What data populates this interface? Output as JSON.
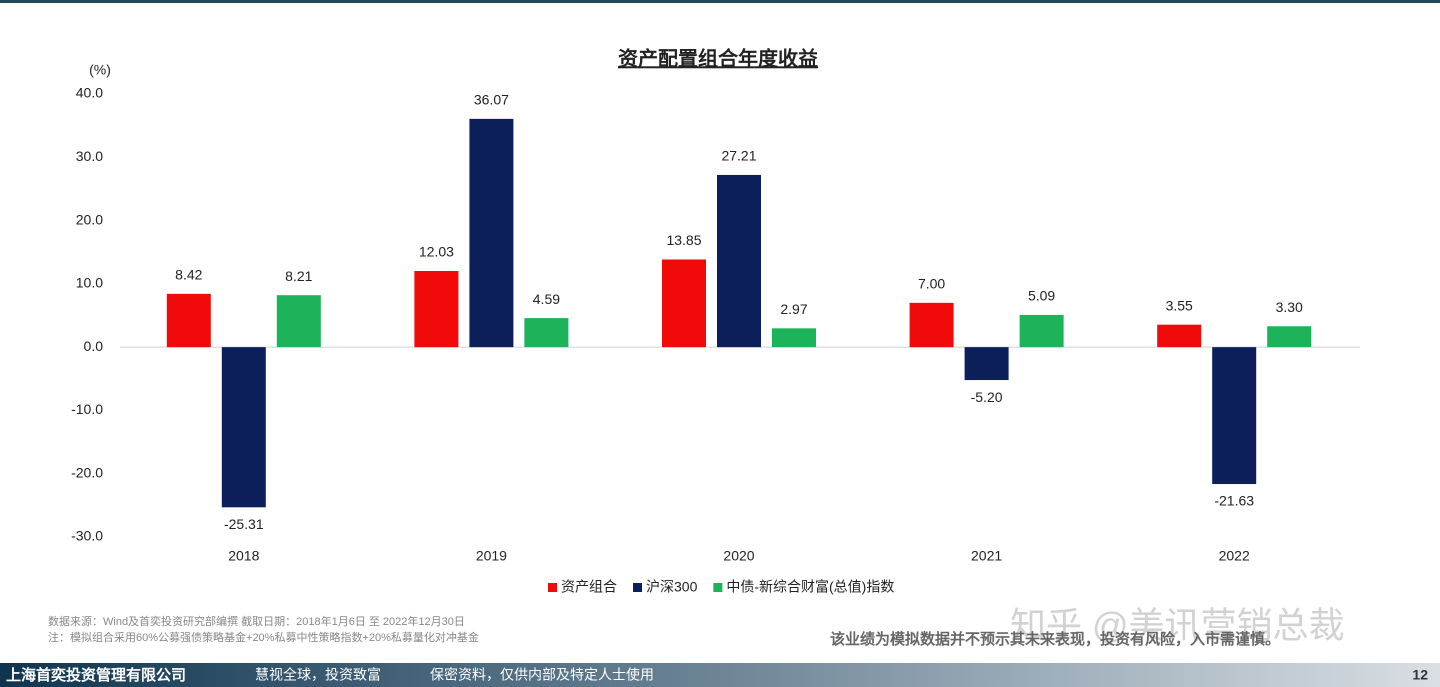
{
  "chart_data": {
    "type": "bar",
    "title": "资产配置组合年度收益",
    "y_label": "(%)",
    "categories": [
      "2018",
      "2019",
      "2020",
      "2021",
      "2022"
    ],
    "series": [
      {
        "name": "资产组合",
        "color": "#f00a0a",
        "values": [
          8.42,
          12.03,
          13.85,
          7.0,
          3.55
        ],
        "value_labels": [
          "8.42",
          "12.03",
          "13.85",
          "7.00",
          "3.55"
        ]
      },
      {
        "name": "沪深300",
        "color": "#0c1f5a",
        "values": [
          -25.31,
          36.07,
          27.21,
          -5.2,
          -21.63
        ],
        "value_labels": [
          "-25.31",
          "36.07",
          "27.21",
          "-5.20",
          "-21.63"
        ]
      },
      {
        "name": "中债-新综合财富(总值)指数",
        "color": "#1cb35a",
        "values": [
          8.21,
          4.59,
          2.97,
          5.09,
          3.3
        ],
        "value_labels": [
          "8.21",
          "4.59",
          "2.97",
          "5.09",
          "3.30"
        ]
      }
    ],
    "ylim": [
      -30,
      40
    ],
    "yticks": [
      {
        "value": 40,
        "label": "40.0"
      },
      {
        "value": 30,
        "label": "30.0"
      },
      {
        "value": 20,
        "label": "20.0"
      },
      {
        "value": 10,
        "label": "10.0"
      },
      {
        "value": 0,
        "label": "0.0"
      },
      {
        "value": -10,
        "label": "-10.0"
      },
      {
        "value": -20,
        "label": "-20.0"
      },
      {
        "value": -30,
        "label": "-30.0"
      }
    ],
    "legend": "bottom"
  },
  "source_note": "数据来源：Wind及首奕投资研究部编撰    截取日期：2018年1月6日 至 2022年12月30日",
  "note": "注：模拟组合采用60%公募强债策略基金+20%私募中性策略指数+20%私募量化对冲基金",
  "disclaimer": "该业绩为模拟数据并不预示其未来表现，投资有风险，入市需谨慎。",
  "watermark": "知乎 @美讯营销总裁",
  "footer": {
    "company": "上海首奕投资管理有限公司",
    "slogan": "慧视全球，投资致富",
    "confidential": "保密资料，仅供内部及特定人士使用",
    "page": "12"
  }
}
